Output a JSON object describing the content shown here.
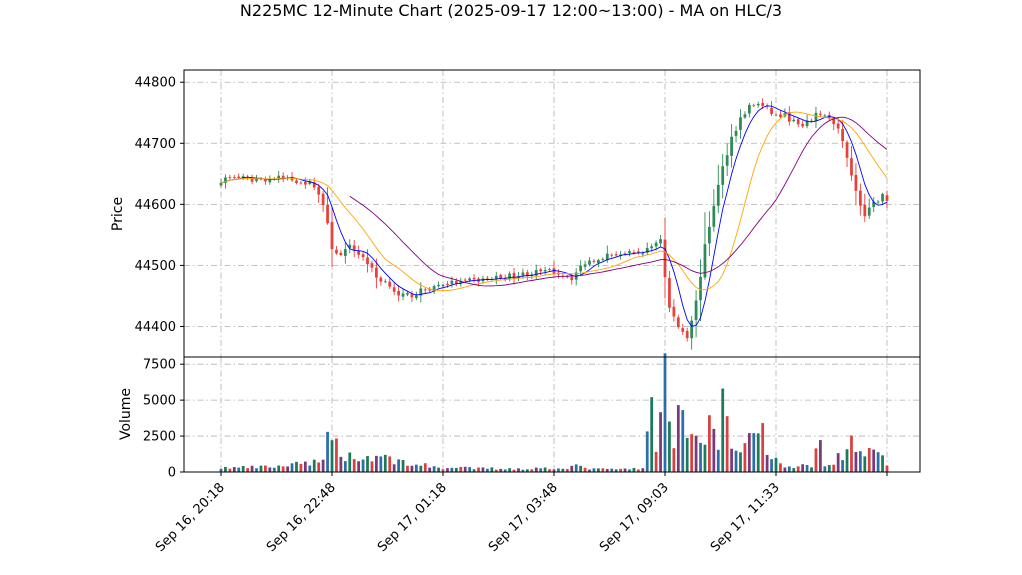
{
  "chart_data": {
    "type": "candlestick",
    "title": "N225MC 12-Minute Chart (2025-09-17 12:00~13:00) - MA on HLC/3",
    "price_panel": {
      "ylabel": "Price",
      "ylim": [
        44350,
        44820
      ],
      "yticks": [
        44400,
        44500,
        44600,
        44700,
        44800
      ],
      "grid": true
    },
    "volume_panel": {
      "ylabel": "Volume",
      "ylim": [
        0,
        8000
      ],
      "yticks": [
        0,
        2500,
        5000,
        7500
      ],
      "grid": true
    },
    "x_ticks": [
      {
        "index": 0,
        "label": "Sep 16, 20:18"
      },
      {
        "index": 25,
        "label": "Sep 16, 22:48"
      },
      {
        "index": 50,
        "label": "Sep 17, 01:18"
      },
      {
        "index": 75,
        "label": "Sep 17, 03:48"
      },
      {
        "index": 100,
        "label": "Sep 17, 09:03"
      },
      {
        "index": 125,
        "label": "Sep 17, 11:33"
      },
      {
        "index": 150,
        "label": ""
      }
    ],
    "close_anchors": [
      [
        0,
        44640
      ],
      [
        3,
        44645
      ],
      [
        6,
        44640
      ],
      [
        10,
        44642
      ],
      [
        14,
        44643
      ],
      [
        18,
        44638
      ],
      [
        21,
        44632
      ],
      [
        23,
        44600
      ],
      [
        25,
        44530
      ],
      [
        27,
        44515
      ],
      [
        29,
        44530
      ],
      [
        31,
        44520
      ],
      [
        33,
        44505
      ],
      [
        35,
        44480
      ],
      [
        38,
        44470
      ],
      [
        40,
        44448
      ],
      [
        43,
        44452
      ],
      [
        46,
        44460
      ],
      [
        50,
        44470
      ],
      [
        55,
        44473
      ],
      [
        60,
        44478
      ],
      [
        65,
        44482
      ],
      [
        70,
        44488
      ],
      [
        75,
        44490
      ],
      [
        79,
        44480
      ],
      [
        82,
        44505
      ],
      [
        86,
        44515
      ],
      [
        90,
        44520
      ],
      [
        93,
        44518
      ],
      [
        96,
        44525
      ],
      [
        99,
        44545
      ],
      [
        100,
        44480
      ],
      [
        101,
        44430
      ],
      [
        103,
        44400
      ],
      [
        105,
        44385
      ],
      [
        107,
        44440
      ],
      [
        109,
        44530
      ],
      [
        111,
        44600
      ],
      [
        113,
        44660
      ],
      [
        115,
        44710
      ],
      [
        117,
        44740
      ],
      [
        119,
        44760
      ],
      [
        121,
        44765
      ],
      [
        123,
        44755
      ],
      [
        125,
        44745
      ],
      [
        127,
        44745
      ],
      [
        129,
        44735
      ],
      [
        131,
        44725
      ],
      [
        133,
        44740
      ],
      [
        135,
        44750
      ],
      [
        137,
        44740
      ],
      [
        139,
        44720
      ],
      [
        141,
        44680
      ],
      [
        143,
        44620
      ],
      [
        145,
        44580
      ],
      [
        147,
        44600
      ],
      [
        149,
        44615
      ],
      [
        150,
        44605
      ]
    ],
    "volume_anchors": [
      [
        0,
        300
      ],
      [
        10,
        350
      ],
      [
        20,
        600
      ],
      [
        22,
        900
      ],
      [
        24,
        2200
      ],
      [
        25,
        2900
      ],
      [
        26,
        2000
      ],
      [
        28,
        1300
      ],
      [
        31,
        900
      ],
      [
        35,
        1200
      ],
      [
        40,
        800
      ],
      [
        45,
        500
      ],
      [
        50,
        300
      ],
      [
        60,
        250
      ],
      [
        70,
        250
      ],
      [
        75,
        300
      ],
      [
        80,
        400
      ],
      [
        85,
        200
      ],
      [
        90,
        200
      ],
      [
        95,
        250
      ],
      [
        97,
        5400
      ],
      [
        98,
        1200
      ],
      [
        99,
        3200
      ],
      [
        100,
        7800
      ],
      [
        101,
        4300
      ],
      [
        102,
        2000
      ],
      [
        103,
        5000
      ],
      [
        104,
        4700
      ],
      [
        106,
        2600
      ],
      [
        108,
        2000
      ],
      [
        110,
        4000
      ],
      [
        111,
        2500
      ],
      [
        112,
        2700
      ],
      [
        113,
        5300
      ],
      [
        115,
        1800
      ],
      [
        118,
        2000
      ],
      [
        120,
        3200
      ],
      [
        122,
        2800
      ],
      [
        124,
        1200
      ],
      [
        126,
        500
      ],
      [
        128,
        400
      ],
      [
        130,
        450
      ],
      [
        133,
        350
      ],
      [
        134,
        2600
      ],
      [
        136,
        700
      ],
      [
        138,
        900
      ],
      [
        140,
        1500
      ],
      [
        142,
        3400
      ],
      [
        143,
        2000
      ],
      [
        145,
        1300
      ],
      [
        148,
        1200
      ],
      [
        150,
        800
      ]
    ],
    "ma_lines": [
      {
        "window": 5,
        "color": "#0000ff",
        "start": 0
      },
      {
        "window": 13,
        "color": "#ffa500",
        "start": 0
      },
      {
        "window": 25,
        "color": "#800080",
        "start": 29
      }
    ],
    "candle_colors": {
      "up": "#2e8b57",
      "down": "#e8403a"
    },
    "volume_colors": [
      "#2b6ea8",
      "#1a7a5a",
      "#d94040",
      "#7a3a7a"
    ]
  }
}
